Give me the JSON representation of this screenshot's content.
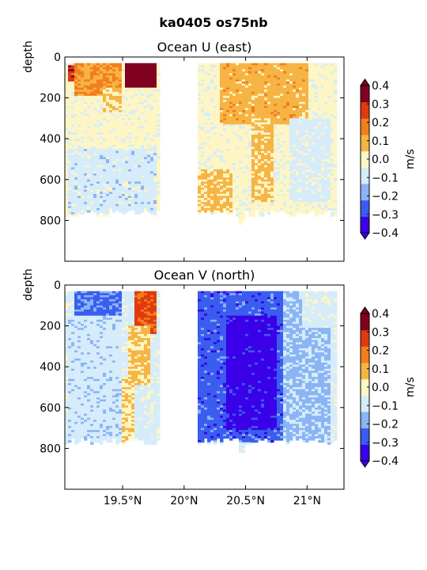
{
  "figure": {
    "title": "ka0405 os75nb"
  },
  "chart_data": [
    {
      "type": "heatmap",
      "title": "Ocean U (east)",
      "xlabel": "",
      "ylabel": "depth",
      "xlim": [
        19.03,
        21.3
      ],
      "ylim": [
        1000,
        0
      ],
      "y_inverted": true,
      "x_ticks": [
        19.5,
        20.0,
        20.5,
        21.0
      ],
      "x_tick_labels": [
        "19.5°N",
        "20°N",
        "20.5°N",
        "21°N"
      ],
      "y_ticks": [
        0,
        200,
        400,
        600,
        800
      ],
      "y_tick_labels": [
        "0",
        "200",
        "400",
        "600",
        "800"
      ],
      "data_gap_lat": [
        19.81,
        20.11
      ],
      "colorbar": {
        "label": "m/s",
        "levels": [
          -0.4,
          -0.3,
          -0.2,
          -0.1,
          0.0,
          0.1,
          0.2,
          0.3,
          0.4
        ],
        "tick_labels": [
          "0.4",
          "0.3",
          "0.2",
          "0.1",
          "0.0",
          "−0.1",
          "−0.2",
          "−0.3",
          "−0.4"
        ],
        "colors_low_to_high": [
          "#3a00e8",
          "#3a5df0",
          "#8ab4f4",
          "#d6ecfa",
          "#fdf6c4",
          "#f6b444",
          "#f27e1c",
          "#e03a10",
          "#800020"
        ],
        "extend": "both"
      },
      "features": [
        {
          "x": [
            19.52,
            19.78
          ],
          "y": [
            30,
            140
          ],
          "value": 0.5
        },
        {
          "x": [
            19.05,
            19.1
          ],
          "y": [
            40,
            110
          ],
          "value": 0.35
        },
        {
          "x": [
            19.28,
            19.4
          ],
          "y": [
            40,
            110
          ],
          "value": 0.3
        },
        {
          "x": [
            19.1,
            19.5
          ],
          "y": [
            30,
            180
          ],
          "value": 0.2
        },
        {
          "x": [
            19.35,
            19.5
          ],
          "y": [
            150,
            260
          ],
          "value": 0.12
        },
        {
          "x": [
            20.5,
            20.6
          ],
          "y": [
            30,
            100
          ],
          "value": 0.35
        },
        {
          "x": [
            20.7,
            20.76
          ],
          "y": [
            40,
            100
          ],
          "value": 0.35
        },
        {
          "x": [
            20.3,
            21.0
          ],
          "y": [
            30,
            320
          ],
          "value": 0.15
        },
        {
          "x": [
            20.55,
            20.72
          ],
          "y": [
            300,
            700
          ],
          "value": 0.12
        },
        {
          "x": [
            20.12,
            20.4
          ],
          "y": [
            550,
            750
          ],
          "value": 0.12
        },
        {
          "x": [
            19.05,
            19.78
          ],
          "y": [
            450,
            760
          ],
          "value": -0.05
        },
        {
          "x": [
            20.85,
            21.2
          ],
          "y": [
            300,
            700
          ],
          "value": -0.04
        }
      ]
    },
    {
      "type": "heatmap",
      "title": "Ocean V (north)",
      "xlabel": "",
      "ylabel": "depth",
      "xlim": [
        19.03,
        21.3
      ],
      "ylim": [
        1000,
        0
      ],
      "y_inverted": true,
      "x_ticks": [
        19.5,
        20.0,
        20.5,
        21.0
      ],
      "x_tick_labels": [
        "19.5°N",
        "20°N",
        "20.5°N",
        "21°N"
      ],
      "y_ticks": [
        0,
        200,
        400,
        600,
        800
      ],
      "y_tick_labels": [
        "0",
        "200",
        "400",
        "600",
        "800"
      ],
      "data_gap_lat": [
        19.81,
        20.11
      ],
      "colorbar": {
        "label": "m/s",
        "levels": [
          -0.4,
          -0.3,
          -0.2,
          -0.1,
          0.0,
          0.1,
          0.2,
          0.3,
          0.4
        ],
        "tick_labels": [
          "0.4",
          "0.3",
          "0.2",
          "0.1",
          "0.0",
          "−0.1",
          "−0.2",
          "−0.3",
          "−0.4"
        ],
        "colors_low_to_high": [
          "#3a00e8",
          "#3a5df0",
          "#8ab4f4",
          "#d6ecfa",
          "#fdf6c4",
          "#f6b444",
          "#f27e1c",
          "#e03a10",
          "#800020"
        ],
        "extend": "both"
      },
      "features": [
        {
          "x": [
            19.6,
            19.78
          ],
          "y": [
            30,
            230
          ],
          "value": 0.32
        },
        {
          "x": [
            19.55,
            19.72
          ],
          "y": [
            200,
            480
          ],
          "value": 0.12
        },
        {
          "x": [
            19.5,
            19.6
          ],
          "y": [
            450,
            780
          ],
          "value": 0.08
        },
        {
          "x": [
            19.12,
            19.3
          ],
          "y": [
            30,
            260
          ],
          "value": -0.22
        },
        {
          "x": [
            19.3,
            19.5
          ],
          "y": [
            30,
            150
          ],
          "value": -0.22
        },
        {
          "x": [
            19.05,
            19.5
          ],
          "y": [
            150,
            780
          ],
          "value": -0.06
        },
        {
          "x": [
            20.12,
            20.8
          ],
          "y": [
            30,
            760
          ],
          "value": -0.25
        },
        {
          "x": [
            20.35,
            20.75
          ],
          "y": [
            150,
            700
          ],
          "value": -0.35
        },
        {
          "x": [
            20.8,
            21.2
          ],
          "y": [
            30,
            780
          ],
          "value": -0.12
        },
        {
          "x": [
            20.95,
            21.2
          ],
          "y": [
            30,
            200
          ],
          "value": -0.04
        }
      ]
    }
  ]
}
